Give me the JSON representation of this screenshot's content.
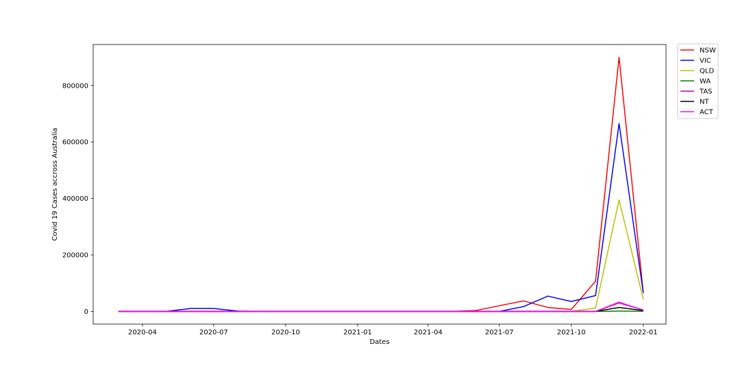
{
  "chart_data": {
    "type": "line",
    "title": "",
    "xlabel": "Dates",
    "ylabel": "Covid 19 Cases accross Australia",
    "x_ticks": [
      "2020-04",
      "2020-07",
      "2020-10",
      "2021-01",
      "2021-04",
      "2021-07",
      "2021-10",
      "2022-01"
    ],
    "y_ticks": [
      "0",
      "200000",
      "400000",
      "600000",
      "800000"
    ],
    "ylim": [
      -45000,
      945000
    ],
    "xlim": [
      "2020-01-29",
      "2022-01-30"
    ],
    "grid": false,
    "legend_position": "outside-top-right",
    "x": [
      "2020-03-01",
      "2020-04-01",
      "2020-05-01",
      "2020-06-01",
      "2020-07-01",
      "2020-08-01",
      "2020-09-01",
      "2020-10-01",
      "2020-11-01",
      "2020-12-01",
      "2021-01-01",
      "2021-02-01",
      "2021-03-01",
      "2021-04-01",
      "2021-05-01",
      "2021-06-01",
      "2021-07-01",
      "2021-08-01",
      "2021-09-01",
      "2021-10-01",
      "2021-11-01",
      "2021-12-01",
      "2022-01-01"
    ],
    "series": [
      {
        "name": "NSW",
        "color": "#ff0000",
        "values": [
          0,
          0,
          0,
          0,
          0,
          0,
          0,
          0,
          0,
          0,
          0,
          0,
          0,
          0,
          0,
          3000,
          20000,
          37000,
          14000,
          7000,
          107000,
          900000,
          65000
        ]
      },
      {
        "name": "VIC",
        "color": "#0000ff",
        "values": [
          0,
          0,
          0,
          10000,
          10000,
          1000,
          0,
          0,
          0,
          0,
          0,
          0,
          0,
          0,
          0,
          0,
          0,
          17000,
          54000,
          35000,
          56000,
          665000,
          65000
        ]
      },
      {
        "name": "QLD",
        "color": "#bfbf00",
        "values": [
          0,
          0,
          0,
          0,
          0,
          0,
          0,
          0,
          0,
          0,
          0,
          0,
          0,
          0,
          0,
          0,
          0,
          0,
          0,
          0,
          12000,
          395000,
          42000
        ]
      },
      {
        "name": "WA",
        "color": "#008000",
        "values": [
          0,
          0,
          0,
          0,
          0,
          0,
          0,
          0,
          0,
          0,
          0,
          0,
          0,
          0,
          0,
          0,
          0,
          0,
          0,
          0,
          0,
          1000,
          500
        ]
      },
      {
        "name": "TAS",
        "color": "#bf00bf",
        "values": [
          0,
          0,
          0,
          0,
          0,
          0,
          0,
          0,
          0,
          0,
          0,
          0,
          0,
          0,
          0,
          0,
          0,
          0,
          0,
          0,
          0,
          30000,
          5000
        ]
      },
      {
        "name": "NT",
        "color": "#000000",
        "values": [
          0,
          0,
          0,
          0,
          0,
          0,
          0,
          0,
          0,
          0,
          0,
          0,
          0,
          0,
          0,
          0,
          0,
          0,
          0,
          0,
          0,
          14000,
          3000
        ]
      },
      {
        "name": "ACT",
        "color": "#ff00ff",
        "values": [
          0,
          0,
          0,
          0,
          0,
          0,
          0,
          0,
          0,
          0,
          0,
          0,
          0,
          0,
          0,
          0,
          0,
          0,
          0,
          0,
          0,
          33000,
          4000
        ]
      }
    ]
  }
}
